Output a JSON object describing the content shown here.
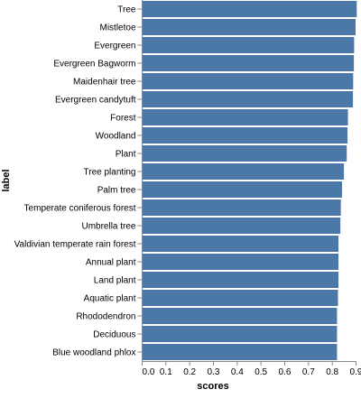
{
  "chart_data": {
    "type": "bar",
    "orientation": "horizontal",
    "xlabel": "scores",
    "ylabel": "label",
    "xlim": [
      0,
      0.9
    ],
    "x_ticks": [
      "0.0",
      "0.1",
      "0.2",
      "0.3",
      "0.4",
      "0.5",
      "0.6",
      "0.7",
      "0.8",
      "0.9"
    ],
    "grid": false,
    "bar_color": "#4c78a8",
    "categories": [
      "Tree",
      "Mistletoe",
      "Evergreen",
      "Evergreen Bagworm",
      "Maidenhair tree",
      "Evergreen candytuft",
      "Forest",
      "Woodland",
      "Plant",
      "Tree planting",
      "Palm tree",
      "Temperate coniferous forest",
      "Umbrella tree",
      "Valdivian temperate rain forest",
      "Annual plant",
      "Land plant",
      "Aquatic plant",
      "Rhododendron",
      "Deciduous",
      "Blue woodland phlox"
    ],
    "values": [
      0.903,
      0.898,
      0.892,
      0.891,
      0.888,
      0.887,
      0.866,
      0.864,
      0.861,
      0.849,
      0.841,
      0.836,
      0.834,
      0.826,
      0.826,
      0.826,
      0.824,
      0.82,
      0.82,
      0.82
    ]
  }
}
